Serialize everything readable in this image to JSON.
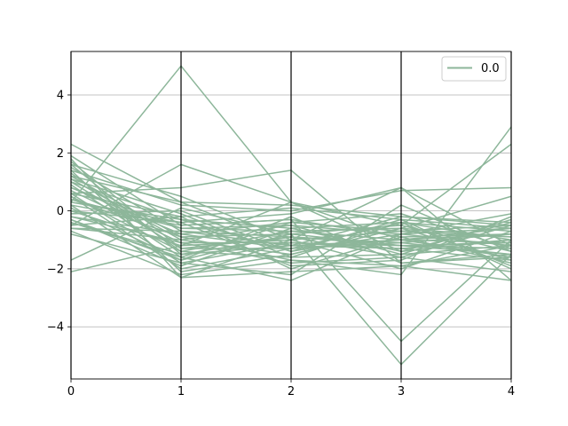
{
  "chart_data": {
    "type": "line",
    "subtype": "parallel-coordinates",
    "title": "",
    "xlabel": "",
    "ylabel": "",
    "x": [
      0,
      1,
      2,
      3,
      4
    ],
    "x_ticks": [
      "0",
      "1",
      "2",
      "3",
      "4"
    ],
    "xlim": [
      0,
      4
    ],
    "ylim": [
      -5.8,
      5.5
    ],
    "y_ticks": [
      -4,
      -2,
      0,
      2,
      4
    ],
    "y_tick_labels": [
      "−4",
      "−2",
      "0",
      "2",
      "4"
    ],
    "grid": "horizontal",
    "legend_position": "top-right",
    "series_color": "#8db69a",
    "series": [
      {
        "name": "0.0",
        "values": [
          0.3,
          5.0,
          0.3,
          -1.0,
          -0.8
        ]
      },
      {
        "name": "0.0",
        "values": [
          -0.5,
          1.6,
          0.3,
          -1.4,
          -1.0
        ]
      },
      {
        "name": "0.0",
        "values": [
          0.6,
          0.8,
          1.4,
          -1.8,
          -1.5
        ]
      },
      {
        "name": "0.0",
        "values": [
          2.3,
          0.3,
          -1.2,
          -1.0,
          -0.6
        ]
      },
      {
        "name": "0.0",
        "values": [
          1.8,
          -2.3,
          -2.1,
          -1.9,
          -2.4
        ]
      },
      {
        "name": "0.0",
        "values": [
          1.6,
          0.5,
          -1.0,
          0.8,
          -1.2
        ]
      },
      {
        "name": "0.0",
        "values": [
          1.4,
          0.2,
          0.0,
          0.7,
          0.8
        ]
      },
      {
        "name": "0.0",
        "values": [
          1.2,
          0.3,
          0.2,
          -0.2,
          -0.5
        ]
      },
      {
        "name": "0.0",
        "values": [
          1.0,
          -0.3,
          -0.6,
          -0.4,
          -0.7
        ]
      },
      {
        "name": "0.0",
        "values": [
          0.8,
          -0.6,
          -0.5,
          -0.8,
          -1.2
        ]
      },
      {
        "name": "0.0",
        "values": [
          0.6,
          -0.2,
          0.1,
          -0.3,
          -0.6
        ]
      },
      {
        "name": "0.0",
        "values": [
          0.4,
          -0.9,
          -0.8,
          -0.5,
          -1.4
        ]
      },
      {
        "name": "0.0",
        "values": [
          0.2,
          -0.5,
          -0.3,
          -0.9,
          -0.8
        ]
      },
      {
        "name": "0.0",
        "values": [
          0.0,
          -1.2,
          -1.0,
          -0.7,
          -0.9
        ]
      },
      {
        "name": "0.0",
        "values": [
          -0.2,
          -0.8,
          -1.3,
          -1.1,
          -1.5
        ]
      },
      {
        "name": "0.0",
        "values": [
          -0.4,
          -1.5,
          -0.9,
          -1.2,
          -1.1
        ]
      },
      {
        "name": "0.0",
        "values": [
          -0.6,
          -1.0,
          -1.5,
          -0.6,
          -1.7
        ]
      },
      {
        "name": "0.0",
        "values": [
          -0.8,
          -1.8,
          -1.1,
          -1.3,
          -1.0
        ]
      },
      {
        "name": "0.0",
        "values": [
          1.5,
          -0.7,
          -1.2,
          -0.2,
          -0.4
        ]
      },
      {
        "name": "0.0",
        "values": [
          1.3,
          -1.4,
          -0.7,
          -1.0,
          -1.6
        ]
      },
      {
        "name": "0.0",
        "values": [
          1.1,
          -0.1,
          -1.6,
          -1.5,
          -0.3
        ]
      },
      {
        "name": "0.0",
        "values": [
          0.9,
          -1.6,
          -0.4,
          -0.1,
          -1.3
        ]
      },
      {
        "name": "0.0",
        "values": [
          0.7,
          -1.1,
          -1.8,
          -1.6,
          -0.5
        ]
      },
      {
        "name": "0.0",
        "values": [
          0.5,
          -2.0,
          -1.3,
          -0.4,
          -1.9
        ]
      },
      {
        "name": "0.0",
        "values": [
          0.3,
          -0.4,
          -1.9,
          -1.7,
          -0.2
        ]
      },
      {
        "name": "0.0",
        "values": [
          0.1,
          -1.7,
          -0.2,
          -1.8,
          -1.6
        ]
      },
      {
        "name": "0.0",
        "values": [
          -0.1,
          0.0,
          -1.4,
          -0.3,
          -2.0
        ]
      },
      {
        "name": "0.0",
        "values": [
          -0.3,
          -1.9,
          -0.6,
          -1.4,
          -0.4
        ]
      },
      {
        "name": "0.0",
        "values": [
          -0.5,
          -0.2,
          -2.0,
          -0.9,
          -1.8
        ]
      },
      {
        "name": "0.0",
        "values": [
          -0.7,
          -2.2,
          -1.7,
          -1.9,
          -1.2
        ]
      },
      {
        "name": "0.0",
        "values": [
          1.7,
          -1.3,
          -0.9,
          -1.6,
          -2.1
        ]
      },
      {
        "name": "0.0",
        "values": [
          1.4,
          -2.1,
          -1.5,
          -0.6,
          0.5
        ]
      },
      {
        "name": "0.0",
        "values": [
          0.6,
          -1.8,
          -2.2,
          0.2,
          -1.4
        ]
      },
      {
        "name": "0.0",
        "values": [
          0.2,
          -2.3,
          -1.0,
          -2.0,
          -0.7
        ]
      },
      {
        "name": "0.0",
        "values": [
          -0.4,
          -1.6,
          -2.4,
          -0.8,
          -0.1
        ]
      },
      {
        "name": "0.0",
        "values": [
          1.9,
          -0.5,
          -0.3,
          -4.5,
          -1.0
        ]
      },
      {
        "name": "0.0",
        "values": [
          -1.7,
          0.1,
          -0.8,
          -5.3,
          -1.5
        ]
      },
      {
        "name": "0.0",
        "values": [
          -2.1,
          -1.2,
          0.3,
          -0.5,
          2.3
        ]
      },
      {
        "name": "0.0",
        "values": [
          1.2,
          -0.9,
          -1.7,
          -2.2,
          2.9
        ]
      },
      {
        "name": "0.0",
        "values": [
          0.0,
          -0.4,
          -0.1,
          0.8,
          -2.4
        ]
      },
      {
        "name": "0.0",
        "values": [
          1.0,
          -1.3,
          -1.3,
          -1.0,
          -1.1
        ]
      },
      {
        "name": "0.0",
        "values": [
          0.4,
          -0.6,
          -0.7,
          -0.6,
          -0.9
        ]
      },
      {
        "name": "0.0",
        "values": [
          -0.2,
          -1.1,
          -1.1,
          -1.2,
          -1.3
        ]
      },
      {
        "name": "0.0",
        "values": [
          0.8,
          -0.8,
          -0.4,
          -0.7,
          -0.5
        ]
      },
      {
        "name": "0.0",
        "values": [
          1.6,
          -1.5,
          -1.2,
          -1.3,
          -1.7
        ]
      },
      {
        "name": "0.0",
        "values": [
          -0.6,
          -0.7,
          -0.9,
          -1.1,
          -0.8
        ]
      },
      {
        "name": "0.0",
        "values": [
          0.5,
          -1.4,
          -1.6,
          -0.4,
          -1.0
        ]
      },
      {
        "name": "0.0",
        "values": [
          1.1,
          -1.0,
          -0.5,
          -1.5,
          -1.2
        ]
      },
      {
        "name": "0.0",
        "values": [
          0.3,
          -0.3,
          -1.4,
          -0.8,
          -0.6
        ]
      },
      {
        "name": "0.0",
        "values": [
          -0.3,
          -1.7,
          -0.8,
          -1.2,
          -1.5
        ]
      }
    ]
  }
}
